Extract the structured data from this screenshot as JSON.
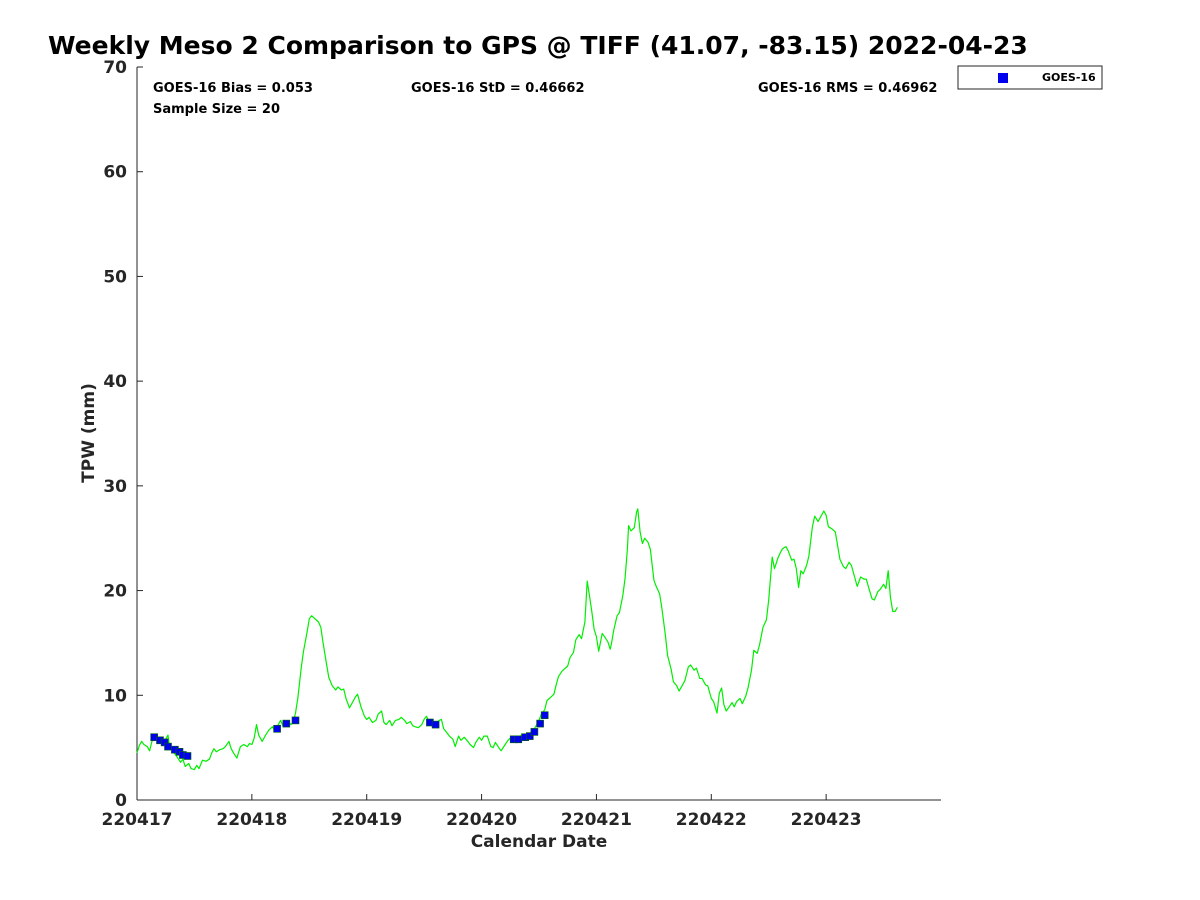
{
  "chart_data": {
    "type": "line",
    "title": "Weekly Meso 2 Comparison to GPS @ TIFF (41.07, -83.15) 2022-04-23",
    "xlabel": "Calendar Date",
    "ylabel": "TPW (mm)",
    "xlim": [
      0,
      7
    ],
    "ylim": [
      0,
      70
    ],
    "x_ticks": [
      0,
      1,
      2,
      3,
      4,
      5,
      6
    ],
    "x_tick_labels": [
      "220417",
      "220418",
      "220419",
      "220420",
      "220421",
      "220422",
      "220423"
    ],
    "y_ticks": [
      0,
      10,
      20,
      30,
      40,
      50,
      60,
      70
    ],
    "y_tick_labels": [
      "0",
      "10",
      "20",
      "30",
      "40",
      "50",
      "60",
      "70"
    ],
    "grid": false,
    "stats": {
      "bias": "GOES-16 Bias = 0.053",
      "std": "GOES-16 StD = 0.46662",
      "rms": "GOES-16 RMS = 0.46962",
      "sample": "Sample Size = 20"
    },
    "legend": {
      "placement": "top-right-outside",
      "entries": [
        "GOES-16"
      ]
    },
    "series": [
      {
        "kind": "line",
        "color": "#00ee00",
        "points": [
          [
            0.0,
            4.5
          ],
          [
            0.02,
            5.2
          ],
          [
            0.04,
            5.6
          ],
          [
            0.06,
            5.3
          ],
          [
            0.09,
            5.1
          ],
          [
            0.11,
            4.7
          ],
          [
            0.13,
            5.6
          ],
          [
            0.15,
            5.9
          ],
          [
            0.17,
            6.0
          ],
          [
            0.2,
            5.7
          ],
          [
            0.22,
            5.5
          ],
          [
            0.25,
            5.8
          ],
          [
            0.27,
            6.2
          ],
          [
            0.28,
            5.2
          ],
          [
            0.3,
            4.9
          ],
          [
            0.33,
            4.4
          ],
          [
            0.35,
            4.1
          ],
          [
            0.38,
            3.6
          ],
          [
            0.4,
            3.9
          ],
          [
            0.42,
            3.2
          ],
          [
            0.45,
            3.5
          ],
          [
            0.47,
            3.0
          ],
          [
            0.5,
            2.9
          ],
          [
            0.52,
            3.3
          ],
          [
            0.54,
            3.0
          ],
          [
            0.57,
            3.8
          ],
          [
            0.6,
            3.7
          ],
          [
            0.63,
            3.9
          ],
          [
            0.65,
            4.5
          ],
          [
            0.67,
            4.9
          ],
          [
            0.69,
            4.6
          ],
          [
            0.72,
            4.8
          ],
          [
            0.75,
            4.9
          ],
          [
            0.77,
            5.1
          ],
          [
            0.8,
            5.6
          ],
          [
            0.82,
            4.9
          ],
          [
            0.84,
            4.5
          ],
          [
            0.87,
            4.0
          ],
          [
            0.9,
            5.1
          ],
          [
            0.93,
            5.3
          ],
          [
            0.96,
            5.1
          ],
          [
            0.98,
            5.4
          ],
          [
            1.0,
            5.3
          ],
          [
            1.02,
            5.9
          ],
          [
            1.04,
            7.2
          ],
          [
            1.06,
            6.2
          ],
          [
            1.09,
            5.6
          ],
          [
            1.12,
            6.2
          ],
          [
            1.15,
            6.7
          ],
          [
            1.18,
            7.0
          ],
          [
            1.2,
            6.6
          ],
          [
            1.23,
            7.2
          ],
          [
            1.25,
            7.6
          ],
          [
            1.27,
            7.1
          ],
          [
            1.3,
            7.3
          ],
          [
            1.32,
            7.5
          ],
          [
            1.34,
            7.2
          ],
          [
            1.36,
            7.4
          ],
          [
            1.38,
            8.3
          ],
          [
            1.4,
            9.7
          ],
          [
            1.43,
            12.6
          ],
          [
            1.45,
            14.2
          ],
          [
            1.48,
            16.0
          ],
          [
            1.5,
            17.3
          ],
          [
            1.52,
            17.6
          ],
          [
            1.55,
            17.3
          ],
          [
            1.58,
            17.0
          ],
          [
            1.6,
            16.5
          ],
          [
            1.62,
            15.0
          ],
          [
            1.65,
            13.0
          ],
          [
            1.67,
            11.7
          ],
          [
            1.7,
            10.9
          ],
          [
            1.73,
            10.5
          ],
          [
            1.75,
            10.8
          ],
          [
            1.78,
            10.5
          ],
          [
            1.8,
            10.6
          ],
          [
            1.82,
            9.7
          ],
          [
            1.85,
            8.8
          ],
          [
            1.88,
            9.4
          ],
          [
            1.9,
            9.8
          ],
          [
            1.92,
            10.1
          ],
          [
            1.95,
            8.9
          ],
          [
            1.98,
            8.0
          ],
          [
            2.0,
            7.7
          ],
          [
            2.02,
            7.9
          ],
          [
            2.05,
            7.4
          ],
          [
            2.08,
            7.6
          ],
          [
            2.1,
            8.2
          ],
          [
            2.13,
            8.5
          ],
          [
            2.15,
            7.4
          ],
          [
            2.17,
            7.2
          ],
          [
            2.2,
            7.6
          ],
          [
            2.22,
            7.1
          ],
          [
            2.25,
            7.6
          ],
          [
            2.28,
            7.7
          ],
          [
            2.3,
            7.9
          ],
          [
            2.33,
            7.6
          ],
          [
            2.35,
            7.3
          ],
          [
            2.38,
            7.5
          ],
          [
            2.4,
            7.1
          ],
          [
            2.42,
            7.0
          ],
          [
            2.45,
            6.9
          ],
          [
            2.48,
            7.2
          ],
          [
            2.5,
            7.7
          ],
          [
            2.52,
            8.0
          ],
          [
            2.55,
            7.3
          ],
          [
            2.58,
            7.2
          ],
          [
            2.6,
            7.1
          ],
          [
            2.63,
            7.6
          ],
          [
            2.65,
            7.7
          ],
          [
            2.67,
            6.8
          ],
          [
            2.7,
            6.4
          ],
          [
            2.72,
            6.1
          ],
          [
            2.75,
            5.8
          ],
          [
            2.77,
            5.1
          ],
          [
            2.8,
            6.1
          ],
          [
            2.82,
            5.7
          ],
          [
            2.85,
            6.0
          ],
          [
            2.88,
            5.6
          ],
          [
            2.9,
            5.3
          ],
          [
            2.93,
            5.0
          ],
          [
            2.95,
            5.5
          ],
          [
            2.98,
            6.0
          ],
          [
            3.0,
            5.7
          ],
          [
            3.02,
            6.1
          ],
          [
            3.05,
            6.1
          ],
          [
            3.08,
            5.1
          ],
          [
            3.1,
            5.0
          ],
          [
            3.12,
            5.5
          ],
          [
            3.15,
            5.0
          ],
          [
            3.17,
            4.7
          ],
          [
            3.2,
            5.2
          ],
          [
            3.23,
            5.7
          ],
          [
            3.25,
            5.9
          ],
          [
            3.28,
            6.0
          ],
          [
            3.3,
            5.6
          ],
          [
            3.33,
            5.8
          ],
          [
            3.35,
            6.3
          ],
          [
            3.38,
            5.9
          ],
          [
            3.4,
            6.0
          ],
          [
            3.43,
            6.5
          ],
          [
            3.45,
            6.6
          ],
          [
            3.48,
            7.2
          ],
          [
            3.5,
            7.6
          ],
          [
            3.52,
            8.2
          ],
          [
            3.55,
            8.6
          ],
          [
            3.57,
            9.5
          ],
          [
            3.6,
            9.8
          ],
          [
            3.63,
            10.1
          ],
          [
            3.65,
            11.0
          ],
          [
            3.67,
            11.8
          ],
          [
            3.7,
            12.3
          ],
          [
            3.73,
            12.6
          ],
          [
            3.75,
            12.8
          ],
          [
            3.77,
            13.6
          ],
          [
            3.8,
            14.1
          ],
          [
            3.82,
            15.3
          ],
          [
            3.85,
            15.8
          ],
          [
            3.87,
            15.4
          ],
          [
            3.9,
            17.0
          ],
          [
            3.92,
            20.9
          ],
          [
            3.94,
            19.5
          ],
          [
            3.96,
            18.0
          ],
          [
            3.98,
            16.3
          ],
          [
            4.0,
            15.6
          ],
          [
            4.02,
            14.2
          ],
          [
            4.05,
            15.9
          ],
          [
            4.07,
            15.6
          ],
          [
            4.1,
            15.1
          ],
          [
            4.12,
            14.4
          ],
          [
            4.13,
            14.9
          ],
          [
            4.15,
            16.2
          ],
          [
            4.18,
            17.6
          ],
          [
            4.2,
            17.9
          ],
          [
            4.23,
            19.5
          ],
          [
            4.25,
            21.2
          ],
          [
            4.27,
            24.0
          ],
          [
            4.28,
            26.2
          ],
          [
            4.3,
            25.7
          ],
          [
            4.33,
            26.0
          ],
          [
            4.35,
            27.5
          ],
          [
            4.36,
            27.8
          ],
          [
            4.38,
            25.6
          ],
          [
            4.4,
            24.5
          ],
          [
            4.42,
            25.0
          ],
          [
            4.45,
            24.6
          ],
          [
            4.47,
            23.9
          ],
          [
            4.5,
            21.0
          ],
          [
            4.52,
            20.4
          ],
          [
            4.55,
            19.7
          ],
          [
            4.57,
            18.3
          ],
          [
            4.6,
            15.8
          ],
          [
            4.62,
            13.8
          ],
          [
            4.65,
            12.5
          ],
          [
            4.67,
            11.3
          ],
          [
            4.7,
            10.9
          ],
          [
            4.72,
            10.4
          ],
          [
            4.75,
            11.0
          ],
          [
            4.77,
            11.4
          ],
          [
            4.8,
            12.7
          ],
          [
            4.82,
            12.9
          ],
          [
            4.85,
            12.4
          ],
          [
            4.87,
            12.6
          ],
          [
            4.9,
            11.6
          ],
          [
            4.92,
            11.6
          ],
          [
            4.95,
            11.0
          ],
          [
            4.97,
            10.9
          ],
          [
            5.0,
            9.7
          ],
          [
            5.02,
            9.4
          ],
          [
            5.05,
            8.3
          ],
          [
            5.07,
            10.2
          ],
          [
            5.09,
            10.7
          ],
          [
            5.11,
            9.1
          ],
          [
            5.13,
            8.5
          ],
          [
            5.15,
            8.8
          ],
          [
            5.18,
            9.3
          ],
          [
            5.2,
            8.9
          ],
          [
            5.22,
            9.4
          ],
          [
            5.25,
            9.7
          ],
          [
            5.27,
            9.2
          ],
          [
            5.3,
            9.9
          ],
          [
            5.32,
            10.7
          ],
          [
            5.35,
            12.4
          ],
          [
            5.37,
            14.3
          ],
          [
            5.4,
            14.0
          ],
          [
            5.42,
            14.8
          ],
          [
            5.45,
            16.5
          ],
          [
            5.48,
            17.2
          ],
          [
            5.5,
            19.1
          ],
          [
            5.53,
            23.2
          ],
          [
            5.55,
            22.1
          ],
          [
            5.58,
            23.1
          ],
          [
            5.6,
            23.6
          ],
          [
            5.62,
            24.0
          ],
          [
            5.65,
            24.2
          ],
          [
            5.67,
            23.8
          ],
          [
            5.7,
            22.9
          ],
          [
            5.72,
            23.0
          ],
          [
            5.74,
            22.1
          ],
          [
            5.76,
            20.3
          ],
          [
            5.78,
            21.9
          ],
          [
            5.8,
            21.6
          ],
          [
            5.83,
            22.4
          ],
          [
            5.85,
            23.3
          ],
          [
            5.88,
            26.1
          ],
          [
            5.9,
            27.1
          ],
          [
            5.93,
            26.6
          ],
          [
            5.95,
            27.0
          ],
          [
            5.98,
            27.6
          ],
          [
            6.0,
            27.2
          ],
          [
            6.02,
            26.1
          ],
          [
            6.05,
            25.9
          ],
          [
            6.08,
            25.6
          ],
          [
            6.1,
            24.3
          ],
          [
            6.12,
            23.0
          ],
          [
            6.15,
            22.3
          ],
          [
            6.17,
            22.1
          ],
          [
            6.2,
            22.7
          ],
          [
            6.22,
            22.4
          ],
          [
            6.25,
            21.2
          ],
          [
            6.27,
            20.4
          ],
          [
            6.3,
            21.3
          ],
          [
            6.33,
            21.1
          ],
          [
            6.35,
            21.1
          ],
          [
            6.37,
            20.3
          ],
          [
            6.4,
            19.2
          ],
          [
            6.42,
            19.1
          ],
          [
            6.45,
            19.9
          ],
          [
            6.47,
            20.1
          ],
          [
            6.5,
            20.6
          ],
          [
            6.52,
            20.2
          ],
          [
            6.54,
            21.9
          ],
          [
            6.56,
            19.3
          ],
          [
            6.58,
            18.0
          ],
          [
            6.6,
            18.0
          ],
          [
            6.62,
            18.4
          ]
        ]
      },
      {
        "kind": "scatter",
        "name": "GOES-16",
        "color": "#0000ee",
        "edge_color": "#006400",
        "points": [
          [
            0.15,
            6.0
          ],
          [
            0.2,
            5.7
          ],
          [
            0.24,
            5.5
          ],
          [
            0.27,
            5.1
          ],
          [
            0.33,
            4.8
          ],
          [
            0.37,
            4.6
          ],
          [
            0.4,
            4.3
          ],
          [
            0.44,
            4.2
          ],
          [
            1.22,
            6.8
          ],
          [
            1.3,
            7.3
          ],
          [
            1.38,
            7.6
          ],
          [
            2.55,
            7.4
          ],
          [
            2.6,
            7.2
          ],
          [
            3.28,
            5.8
          ],
          [
            3.32,
            5.8
          ],
          [
            3.38,
            6.0
          ],
          [
            3.42,
            6.1
          ],
          [
            3.46,
            6.5
          ],
          [
            3.51,
            7.3
          ],
          [
            3.55,
            8.1
          ]
        ]
      }
    ]
  }
}
